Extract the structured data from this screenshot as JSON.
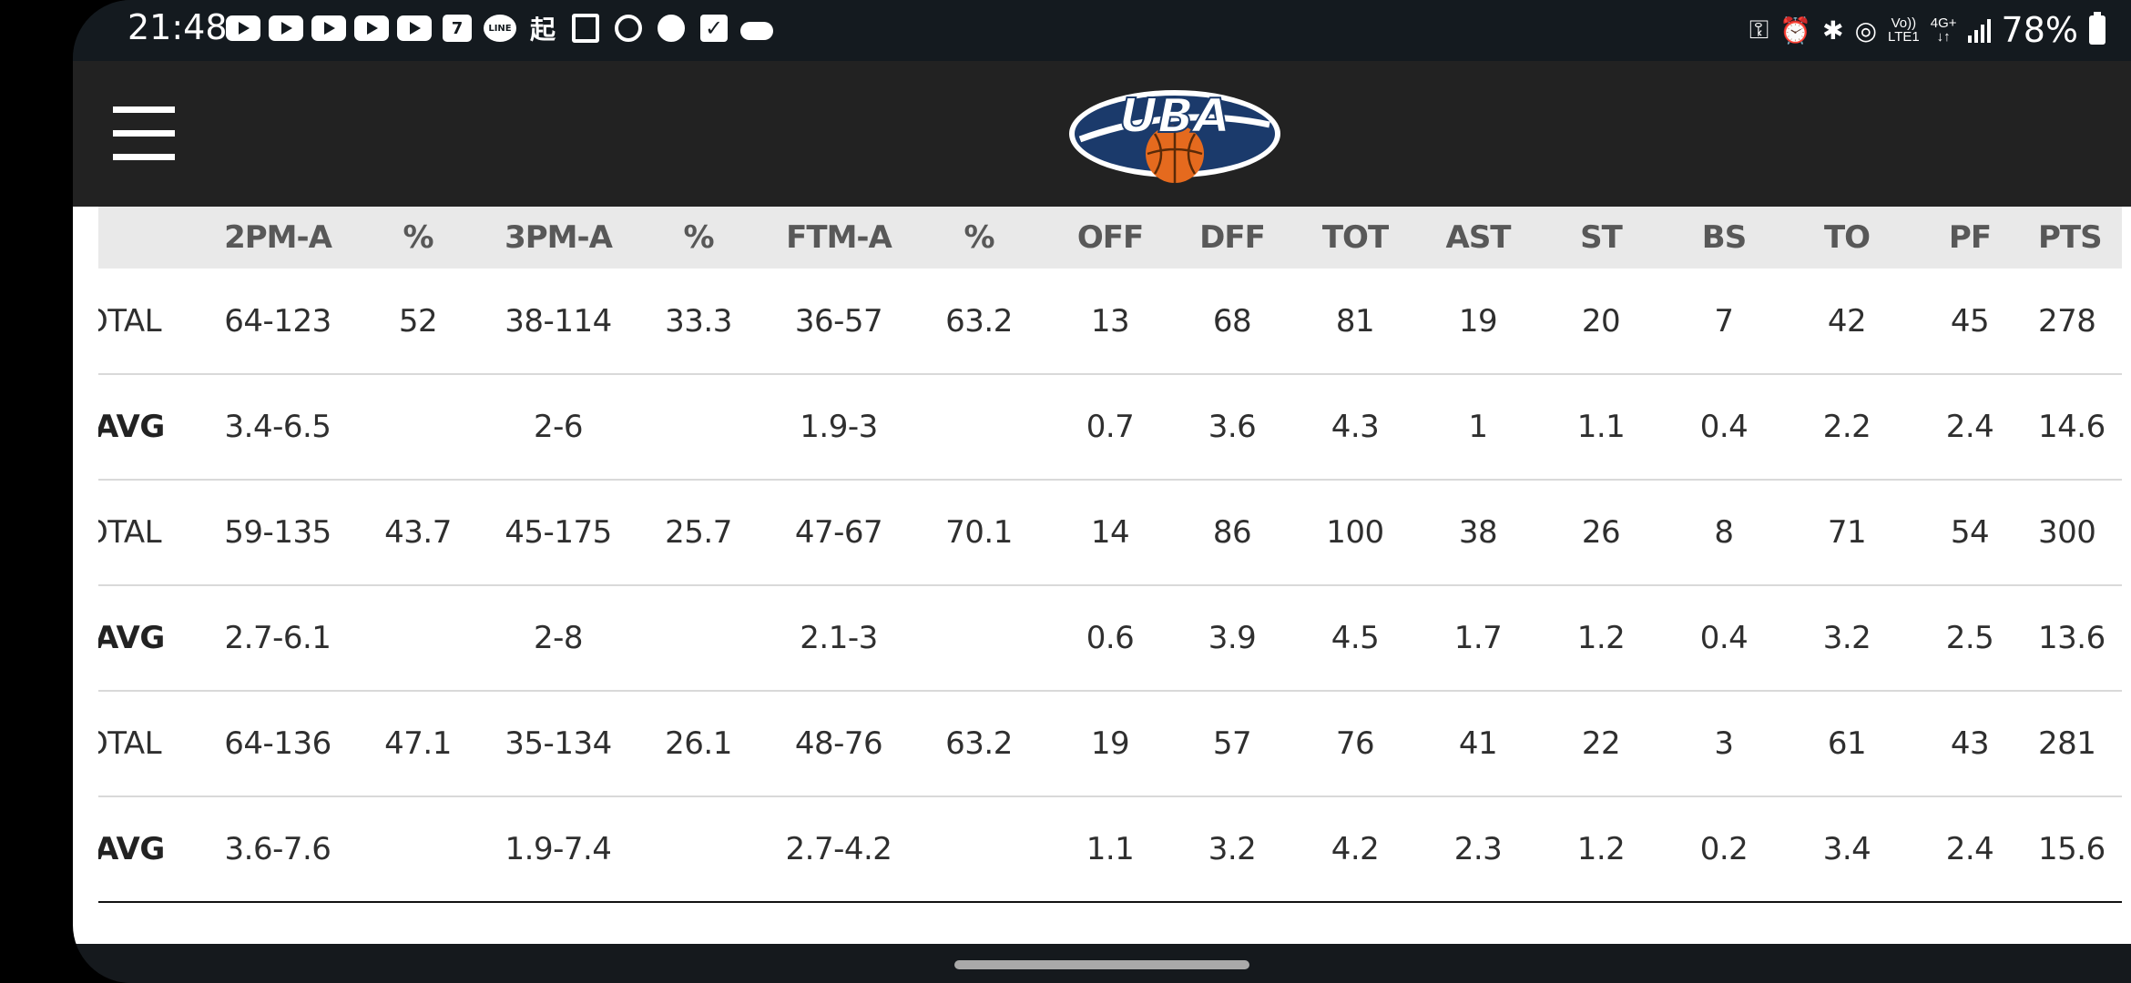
{
  "status_bar": {
    "time": "21:48",
    "notification_icons": [
      "youtube-icon",
      "youtube-icon",
      "youtube-icon",
      "youtube-icon",
      "youtube-icon",
      "calendar-icon",
      "line-icon",
      "kanji-app-icon",
      "twitch-icon",
      "sync-icon",
      "chat-bubble-icon",
      "task-check-icon",
      "cloud-icon"
    ],
    "calendar_glyph": "7",
    "line_label": "LINE",
    "kanji_glyph": "起",
    "volte_top": "Vo))",
    "volte_bottom": "LTE1",
    "network_top": "4G+",
    "network_bottom": "↓↑",
    "battery": "78%"
  },
  "header": {
    "menu_icon": "hamburger-menu-icon",
    "logo_text": "UBA"
  },
  "stats_table": {
    "headers": [
      "",
      "2PM-A",
      "%",
      "3PM-A",
      "%",
      "FTM-A",
      "%",
      "OFF",
      "DFF",
      "TOT",
      "AST",
      "ST",
      "BS",
      "TO",
      "PF",
      "PTS"
    ],
    "rows": [
      [
        "OTAL",
        "64-123",
        "52",
        "38-114",
        "33.3",
        "36-57",
        "63.2",
        "13",
        "68",
        "81",
        "19",
        "20",
        "7",
        "42",
        "45",
        "278"
      ],
      [
        "AVG",
        "3.4-6.5",
        "",
        "2-6",
        "",
        "1.9-3",
        "",
        "0.7",
        "3.6",
        "4.3",
        "1",
        "1.1",
        "0.4",
        "2.2",
        "2.4",
        "14.6"
      ],
      [
        "OTAL",
        "59-135",
        "43.7",
        "45-175",
        "25.7",
        "47-67",
        "70.1",
        "14",
        "86",
        "100",
        "38",
        "26",
        "8",
        "71",
        "54",
        "300"
      ],
      [
        "AVG",
        "2.7-6.1",
        "",
        "2-8",
        "",
        "2.1-3",
        "",
        "0.6",
        "3.9",
        "4.5",
        "1.7",
        "1.2",
        "0.4",
        "3.2",
        "2.5",
        "13.6"
      ],
      [
        "OTAL",
        "64-136",
        "47.1",
        "35-134",
        "26.1",
        "48-76",
        "63.2",
        "19",
        "57",
        "76",
        "41",
        "22",
        "3",
        "61",
        "43",
        "281"
      ],
      [
        "AVG",
        "3.6-7.6",
        "",
        "1.9-7.4",
        "",
        "2.7-4.2",
        "",
        "1.1",
        "3.2",
        "4.2",
        "2.3",
        "1.2",
        "0.2",
        "3.4",
        "2.4",
        "15.6"
      ]
    ]
  },
  "colors": {
    "status_bar_bg": "#141a1f",
    "nav_bg": "#222222",
    "table_header_bg": "#e9e9e9",
    "logo_navy": "#1b3a6b",
    "logo_orange": "#e56a1e"
  }
}
